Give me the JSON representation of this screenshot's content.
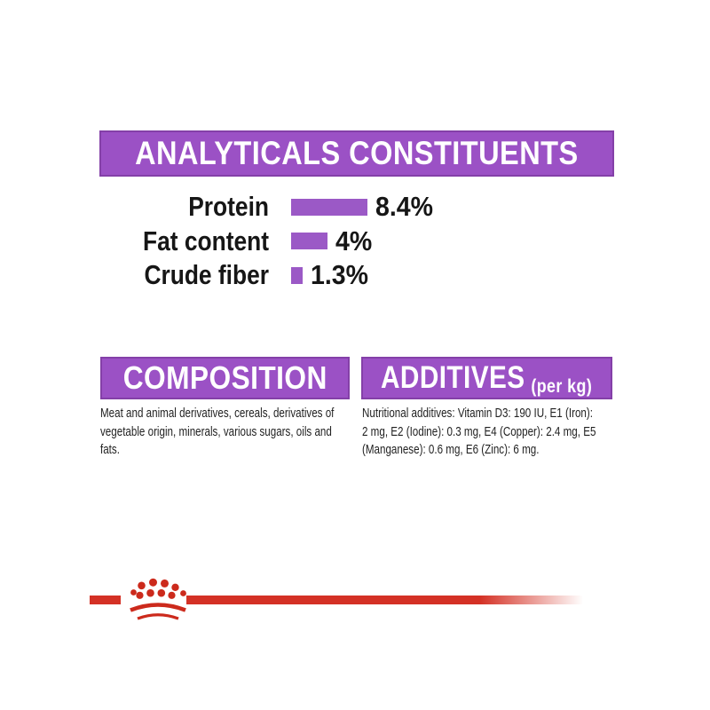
{
  "analyticals": {
    "title": "ANALYTICALS CONSTITUENTS"
  },
  "chart_data": {
    "type": "bar",
    "orientation": "horizontal",
    "title": "ANALYTICALS CONSTITUENTS",
    "categories": [
      "Protein",
      "Fat content",
      "Crude fiber"
    ],
    "values": [
      8.4,
      4,
      1.3
    ],
    "value_labels": [
      "8.4%",
      "4%",
      "1.3%"
    ],
    "unit": "%",
    "xlim": [
      0,
      10
    ],
    "bar_color": "#9b59c6",
    "legend": "none",
    "grid": false
  },
  "composition": {
    "title": "COMPOSITION",
    "body": "Meat and animal derivatives, cereals, derivatives of\nvegetable origin, minerals, various sugars, oils and\nfats."
  },
  "additives": {
    "title": "ADDITIVES",
    "title_suffix": "(per kg)",
    "body": "Nutritional additives: Vitamin D3: 190 IU, E1 (Iron):\n2 mg, E2 (Iodine): 0.3 mg, E4 (Copper): 2.4 mg, E5\n(Manganese): 0.6 mg, E6 (Zinc): 6 mg."
  },
  "brand": {
    "logo_name": "royal-canin-crown",
    "accent_red": "#d43125",
    "accent_purple": "#9b51c5",
    "text_color": "#161616"
  }
}
